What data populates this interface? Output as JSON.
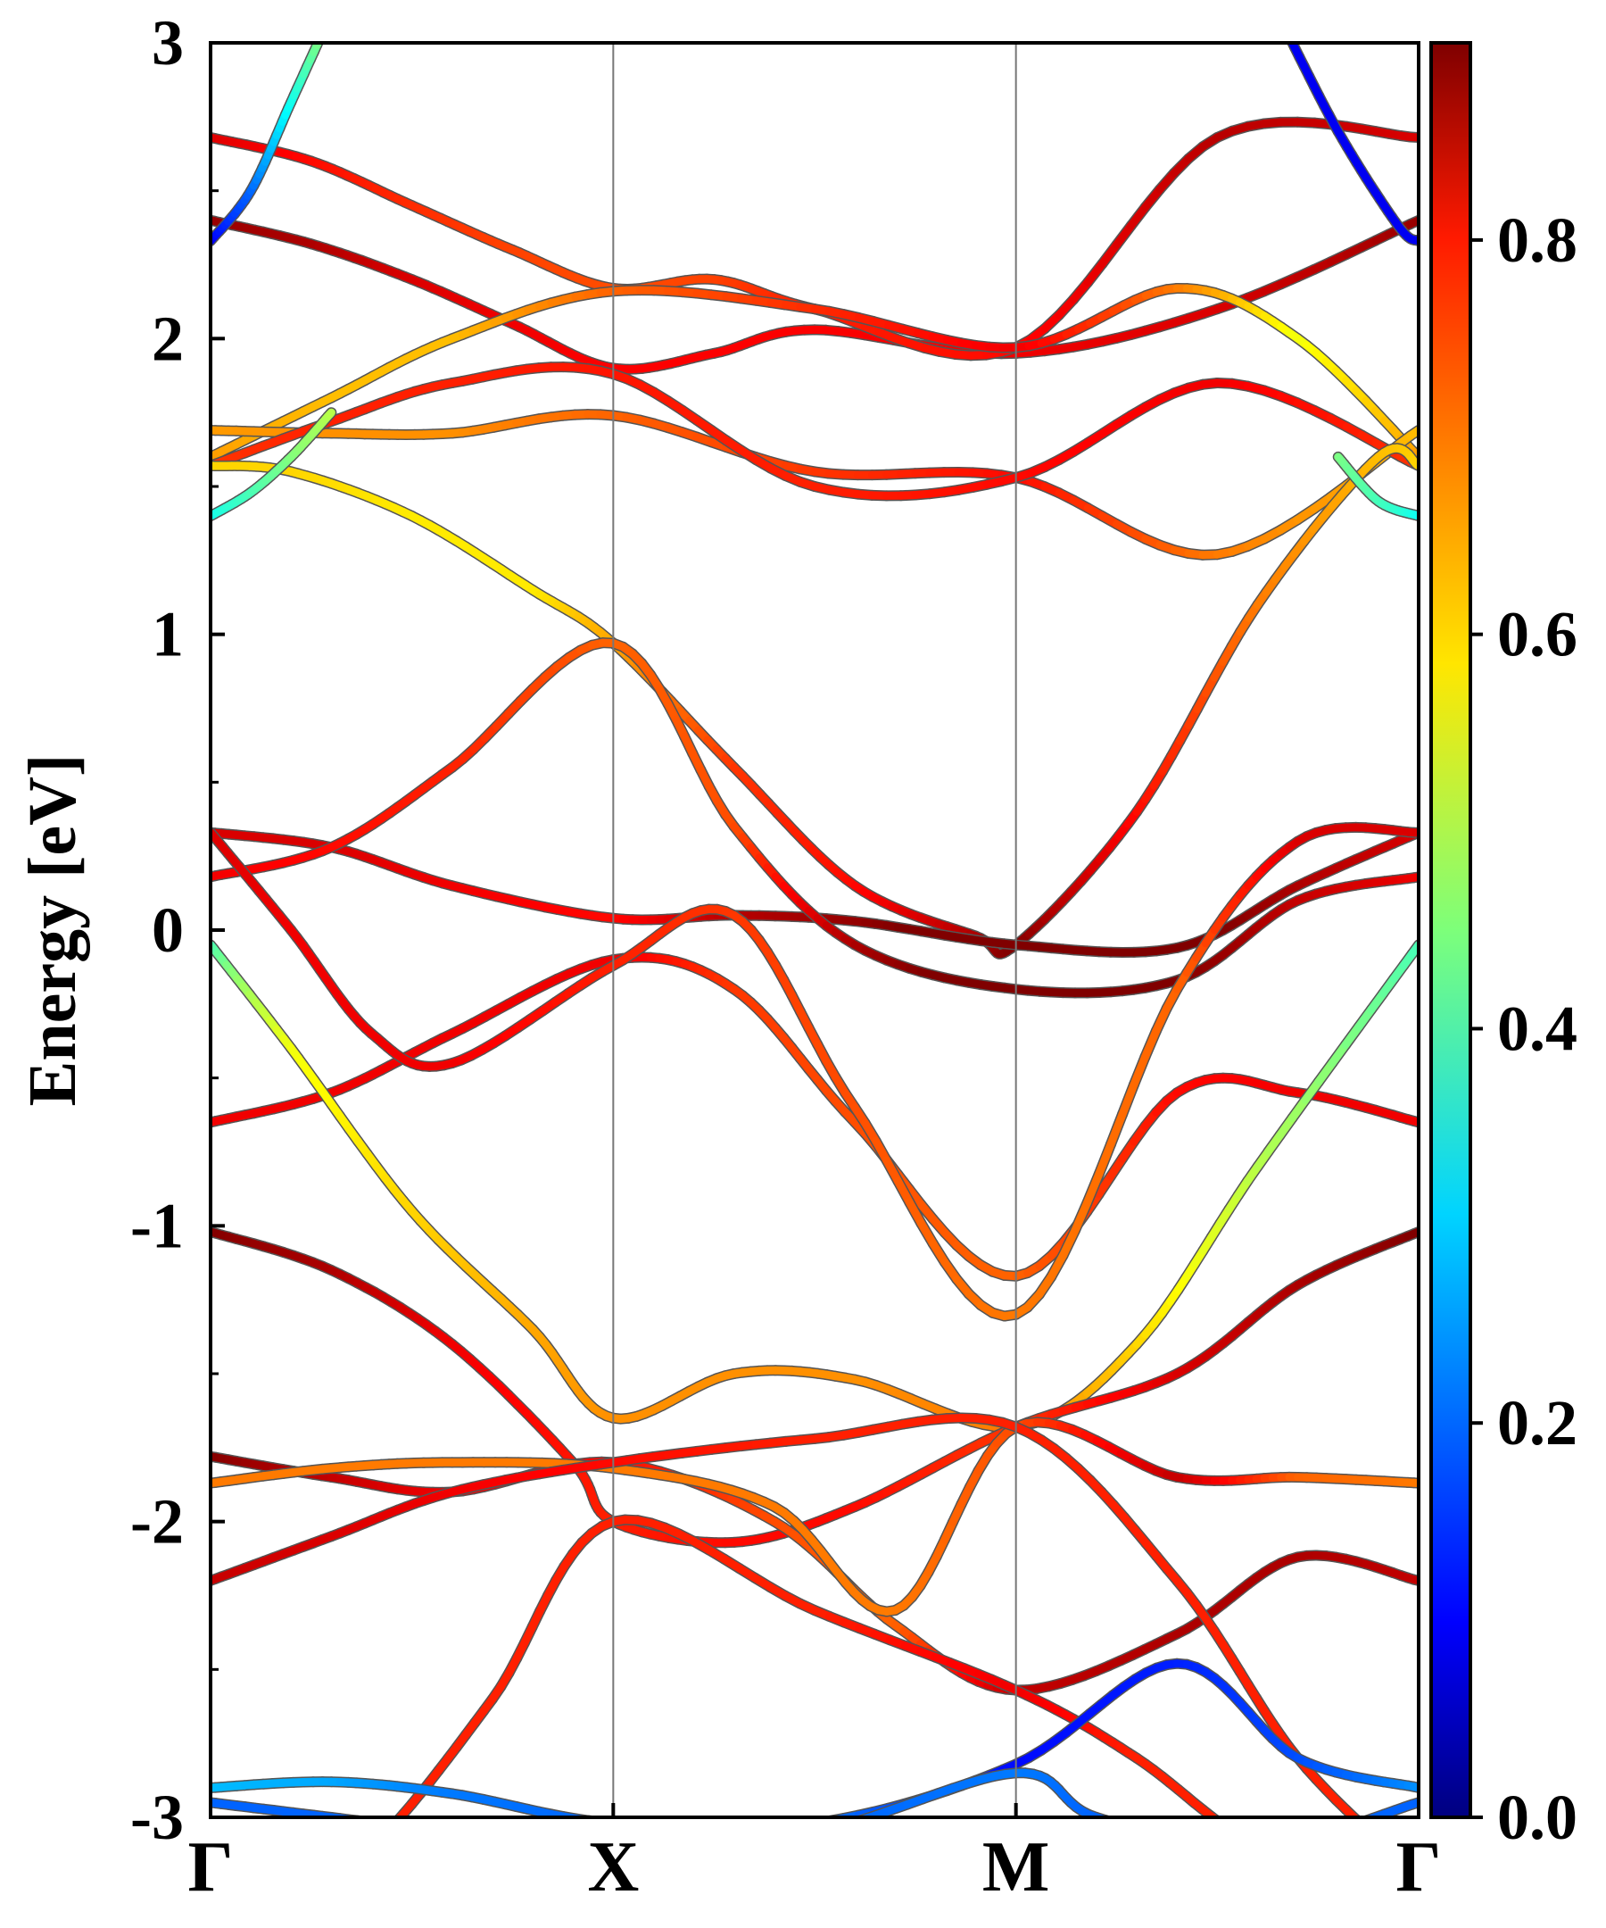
{
  "chart_data": {
    "type": "line",
    "title": "",
    "xlabel": "",
    "ylabel": "Energy [eV]",
    "ylim": [
      -3,
      3
    ],
    "high_symmetry_points": [
      "Γ",
      "X",
      "M",
      "Γ"
    ],
    "y_ticks": [
      "3",
      "2",
      "1",
      "0",
      "-1",
      "-2",
      "-3"
    ],
    "colorbar": {
      "colormap": "jet",
      "range": [
        0.0,
        0.9
      ],
      "ticks": [
        "0.8",
        "0.6",
        "0.4",
        "0.2",
        "0.0"
      ]
    },
    "grid": false,
    "series": [
      {
        "x": [
          0,
          0.25,
          0.5,
          0.75,
          1,
          1.25,
          1.5,
          2,
          2.5,
          3
        ],
        "y": [
          2.4,
          2.32,
          2.2,
          2.05,
          1.9,
          1.95,
          2.03,
          1.95,
          2.1,
          2.4
        ],
        "c": [
          0.88,
          0.86,
          0.82,
          0.8,
          0.79,
          0.79,
          0.79,
          0.8,
          0.82,
          0.88
        ]
      },
      {
        "x": [
          0,
          0.25,
          0.5,
          0.75,
          1,
          1.25,
          1.5,
          2,
          2.5,
          3
        ],
        "y": [
          2.68,
          2.6,
          2.45,
          2.3,
          2.17,
          2.2,
          2.1,
          1.97,
          2.68,
          2.68
        ],
        "c": [
          0.82,
          0.78,
          0.75,
          0.73,
          0.72,
          0.73,
          0.76,
          0.78,
          0.85,
          0.82
        ]
      },
      {
        "x": [
          0,
          0.3,
          0.6,
          1,
          1.5,
          2,
          2.4,
          2.7,
          3
        ],
        "y": [
          1.6,
          1.8,
          2.0,
          2.16,
          2.1,
          1.97,
          2.17,
          2.0,
          1.6
        ],
        "c": [
          0.65,
          0.62,
          0.62,
          0.7,
          0.75,
          0.8,
          0.68,
          0.55,
          0.65
        ]
      },
      {
        "x": [
          0,
          0.3,
          0.6,
          1,
          1.5,
          2,
          2.5,
          3
        ],
        "y": [
          1.69,
          1.68,
          1.68,
          1.74,
          1.55,
          1.53,
          1.27,
          1.69
        ],
        "c": [
          0.65,
          0.66,
          0.66,
          0.7,
          0.74,
          0.78,
          0.68,
          0.62
        ]
      },
      {
        "x": [
          0,
          0.3,
          0.6,
          1,
          1.5,
          2,
          2.5,
          3
        ],
        "y": [
          1.57,
          1.72,
          1.85,
          1.88,
          1.5,
          1.53,
          1.85,
          1.57
        ],
        "c": [
          0.74,
          0.76,
          0.76,
          0.77,
          0.76,
          0.78,
          0.8,
          0.74
        ]
      },
      {
        "x": [
          0,
          0.2,
          0.5,
          0.8,
          1,
          1.3,
          1.6,
          1.9,
          2,
          2.3,
          2.6,
          2.9,
          3
        ],
        "y": [
          1.57,
          1.55,
          1.4,
          1.15,
          0.97,
          0.55,
          0.15,
          -0.02,
          -0.05,
          0.4,
          1.1,
          1.6,
          1.57
        ],
        "c": [
          0.6,
          0.6,
          0.58,
          0.58,
          0.64,
          0.74,
          0.78,
          0.86,
          0.9,
          0.78,
          0.68,
          0.62,
          0.6
        ]
      },
      {
        "x": [
          0,
          0.3,
          0.6,
          1,
          1.3,
          1.6,
          2,
          2.4,
          2.7,
          3
        ],
        "y": [
          0.33,
          0.28,
          0.15,
          0.04,
          0.05,
          0.03,
          -0.05,
          -0.06,
          0.15,
          0.33
        ],
        "c": [
          0.82,
          0.82,
          0.8,
          0.78,
          0.85,
          0.88,
          0.94,
          0.92,
          0.86,
          0.82
        ]
      },
      {
        "x": [
          0,
          0.3,
          0.6,
          1,
          1.3,
          1.6,
          2,
          2.4,
          2.7,
          3
        ],
        "y": [
          0.18,
          0.28,
          0.55,
          0.97,
          0.35,
          -0.05,
          -0.2,
          -0.17,
          0.1,
          0.18
        ],
        "c": [
          0.8,
          0.78,
          0.76,
          0.7,
          0.72,
          0.86,
          0.94,
          0.9,
          0.84,
          0.8
        ]
      },
      {
        "x": [
          0,
          0.3,
          0.6,
          1,
          1.3,
          1.6,
          2,
          2.4,
          2.7,
          3
        ],
        "y": [
          -0.65,
          -0.55,
          -0.35,
          -0.1,
          -0.2,
          -0.65,
          -1.17,
          -0.55,
          -0.55,
          -0.65
        ],
        "c": [
          0.8,
          0.8,
          0.8,
          0.8,
          0.74,
          0.72,
          0.7,
          0.78,
          0.8,
          0.8
        ]
      },
      {
        "x": [
          0,
          0.2,
          0.4,
          0.6,
          1,
          1.3,
          1.6,
          2,
          2.4,
          2.7,
          3
        ],
        "y": [
          0.33,
          0.0,
          -0.35,
          -0.45,
          -0.12,
          0.05,
          -0.6,
          -1.3,
          -0.2,
          0.3,
          0.33
        ],
        "c": [
          0.82,
          0.8,
          0.8,
          0.8,
          0.76,
          0.74,
          0.72,
          0.68,
          0.7,
          0.82,
          0.82
        ]
      },
      {
        "x": [
          0,
          0.2,
          0.5,
          0.8,
          1,
          1.3,
          1.6,
          2,
          2.3,
          2.6,
          3
        ],
        "y": [
          -0.05,
          -0.4,
          -0.95,
          -1.35,
          -1.65,
          -1.5,
          -1.52,
          -1.68,
          -1.4,
          -0.8,
          -0.05
        ],
        "c": [
          0.4,
          0.55,
          0.6,
          0.64,
          0.66,
          0.66,
          0.66,
          0.68,
          0.6,
          0.5,
          0.4
        ]
      },
      {
        "x": [
          0,
          0.3,
          0.6,
          0.9,
          1,
          1.3,
          1.6,
          2,
          2.4,
          2.7,
          3
        ],
        "y": [
          -1.02,
          -1.15,
          -1.4,
          -1.8,
          -2.0,
          -2.07,
          -1.95,
          -1.68,
          -1.5,
          -1.2,
          -1.02
        ],
        "c": [
          0.9,
          0.86,
          0.8,
          0.77,
          0.76,
          0.78,
          0.78,
          0.74,
          0.82,
          0.86,
          0.9
        ]
      },
      {
        "x": [
          0,
          0.3,
          0.6,
          1,
          1.4,
          1.7,
          2,
          2.4,
          2.7,
          3
        ],
        "y": [
          -1.78,
          -1.85,
          -1.9,
          -1.8,
          -2.0,
          -2.35,
          -2.57,
          -2.38,
          -2.12,
          -2.2
        ],
        "c": [
          0.9,
          0.84,
          0.8,
          0.78,
          0.72,
          0.7,
          0.84,
          0.86,
          0.86,
          0.84
        ]
      },
      {
        "x": [
          0,
          0.3,
          0.6,
          1,
          1.4,
          1.7,
          2,
          2.4,
          2.7,
          3
        ],
        "y": [
          -1.87,
          -1.82,
          -1.8,
          -1.82,
          -1.95,
          -2.3,
          -1.68,
          -1.85,
          -1.85,
          -1.87
        ],
        "c": [
          0.68,
          0.68,
          0.68,
          0.68,
          0.68,
          0.68,
          0.72,
          0.84,
          0.7,
          0.68
        ]
      },
      {
        "x": [
          0,
          0.3,
          0.6,
          1,
          1.5,
          2,
          2.4,
          2.7,
          3
        ],
        "y": [
          -2.2,
          -2.05,
          -1.9,
          -1.8,
          -1.72,
          -1.68,
          -2.2,
          -2.8,
          -3.2
        ],
        "c": [
          0.84,
          0.82,
          0.8,
          0.78,
          0.76,
          0.76,
          0.76,
          0.76,
          0.76
        ]
      },
      {
        "x": [
          0,
          0.2,
          0.4,
          0.7,
          1,
          1.5,
          2,
          2.3,
          2.6,
          3
        ],
        "y": [
          -3.3,
          -3.2,
          -3.1,
          -2.6,
          -2.0,
          -2.3,
          -2.57,
          -2.8,
          -3.1,
          -3.3
        ],
        "c": [
          0.76,
          0.76,
          0.76,
          0.76,
          0.76,
          0.76,
          0.8,
          0.76,
          0.76,
          0.76
        ]
      },
      {
        "x": [
          0,
          0.3,
          0.6,
          1,
          1.5,
          2,
          2.4,
          2.7,
          3
        ],
        "y": [
          -2.9,
          -2.88,
          -2.92,
          -3.02,
          -3.02,
          -2.82,
          -2.48,
          -2.8,
          -2.9
        ],
        "c": [
          0.28,
          0.26,
          0.22,
          0.2,
          0.22,
          0.12,
          0.14,
          0.18,
          0.24
        ]
      },
      {
        "x": [
          0,
          0.3,
          0.6,
          1,
          1.5,
          2,
          2.2,
          2.6,
          3
        ],
        "y": [
          -2.95,
          -3.0,
          -3.05,
          -3.1,
          -3.05,
          -2.85,
          -3.0,
          -3.1,
          -2.95
        ],
        "c": [
          0.2,
          0.2,
          0.2,
          0.2,
          0.2,
          0.22,
          0.2,
          0.2,
          0.2
        ]
      },
      {
        "x": [
          0,
          0.1,
          0.2,
          0.3
        ],
        "y": [
          2.33,
          2.5,
          2.8,
          3.1
        ],
        "c": [
          0.1,
          0.2,
          0.35,
          0.5
        ]
      },
      {
        "x": [
          0,
          0.1,
          0.2,
          0.3
        ],
        "y": [
          1.4,
          1.48,
          1.6,
          1.75
        ],
        "c": [
          0.35,
          0.4,
          0.45,
          0.5
        ]
      },
      {
        "x": [
          2.65,
          2.8,
          2.95,
          3
        ],
        "y": [
          3.1,
          2.7,
          2.38,
          2.33
        ],
        "c": [
          0.1,
          0.1,
          0.1,
          0.1
        ]
      },
      {
        "x": [
          2.8,
          2.9,
          3
        ],
        "y": [
          1.6,
          1.45,
          1.4
        ],
        "c": [
          0.45,
          0.4,
          0.35
        ]
      }
    ]
  }
}
